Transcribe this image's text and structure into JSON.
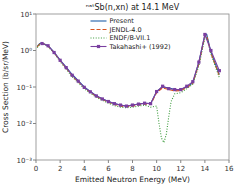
{
  "chart_data": {
    "type": "line",
    "title": "ⁿᵃᵗSb(n,xn) at 14.1 MeV",
    "x_label": "Emitted Neutron Energy (MeV)",
    "y_label": "Cross Section (b/sr/MeV)",
    "log": "y",
    "legend": "upper center",
    "grid": false,
    "xlim": [
      0,
      16
    ],
    "xticks": [
      0,
      2,
      4,
      6,
      8,
      10,
      12,
      14,
      16
    ],
    "ylim": [
      0.001,
      10
    ],
    "yticks": [
      {
        "value": 0.001,
        "label": "10⁻³"
      },
      {
        "value": 0.01,
        "label": "10⁻²"
      },
      {
        "value": 0.1,
        "label": "10⁻¹"
      },
      {
        "value": 1,
        "label": "10⁰"
      },
      {
        "value": 10,
        "label": "10¹"
      }
    ],
    "series": [
      {
        "name": "Present",
        "line_style": "solid",
        "x": [
          0.1,
          0.3,
          0.5,
          0.7,
          1.0,
          1.5,
          2.0,
          2.5,
          3.0,
          3.5,
          4.0,
          4.5,
          5.0,
          5.5,
          6.0,
          6.5,
          7.0,
          7.5,
          8.0,
          8.5,
          9.0,
          9.5,
          10.0,
          10.5,
          11.0,
          11.5,
          12.0,
          12.5,
          13.0,
          13.5,
          14.0,
          14.15,
          14.5,
          15.2
        ],
        "values": [
          1.3,
          1.55,
          1.6,
          1.5,
          1.35,
          0.9,
          0.55,
          0.35,
          0.22,
          0.15,
          0.1,
          0.075,
          0.058,
          0.048,
          0.04,
          0.035,
          0.032,
          0.03,
          0.032,
          0.034,
          0.036,
          0.035,
          0.075,
          0.1,
          0.095,
          0.085,
          0.085,
          0.1,
          0.13,
          0.48,
          2.7,
          2.8,
          0.9,
          0.22
        ]
      },
      {
        "name": "JENDL-4.0",
        "line_style": "dashed",
        "x": [
          0.1,
          0.3,
          0.5,
          0.7,
          1.0,
          1.5,
          2.0,
          2.5,
          3.0,
          3.5,
          4.0,
          4.5,
          5.0,
          5.5,
          6.0,
          6.5,
          7.0,
          7.5,
          8.0,
          8.5,
          9.0,
          9.5,
          10.0,
          10.5,
          11.0,
          11.5,
          12.0,
          12.5,
          13.0,
          13.5,
          14.0,
          14.15,
          14.5,
          15.2
        ],
        "values": [
          1.25,
          1.5,
          1.58,
          1.48,
          1.32,
          0.88,
          0.52,
          0.33,
          0.2,
          0.14,
          0.095,
          0.072,
          0.055,
          0.046,
          0.038,
          0.033,
          0.03,
          0.029,
          0.03,
          0.032,
          0.034,
          0.033,
          0.07,
          0.095,
          0.085,
          0.078,
          0.08,
          0.095,
          0.125,
          0.43,
          2.5,
          2.6,
          0.85,
          0.2
        ]
      },
      {
        "name": "ENDF/B-VII.1",
        "line_style": "dotted",
        "x": [
          0.1,
          0.3,
          0.5,
          0.7,
          1.0,
          1.5,
          2.0,
          2.5,
          3.0,
          3.5,
          4.0,
          4.5,
          5.0,
          5.5,
          6.0,
          6.5,
          7.0,
          7.5,
          8.0,
          8.5,
          9.0,
          9.5,
          10.0,
          10.2,
          10.4,
          10.6,
          10.8,
          11.0,
          11.2,
          11.5,
          12.0,
          12.5,
          13.0,
          13.5,
          14.0,
          14.15,
          14.5,
          15.2
        ],
        "values": [
          1.2,
          1.45,
          1.55,
          1.45,
          1.28,
          0.85,
          0.5,
          0.31,
          0.19,
          0.13,
          0.09,
          0.068,
          0.052,
          0.043,
          0.036,
          0.031,
          0.028,
          0.027,
          0.028,
          0.03,
          0.032,
          0.028,
          0.03,
          0.01,
          0.004,
          0.003,
          0.005,
          0.015,
          0.04,
          0.065,
          0.07,
          0.09,
          0.12,
          0.38,
          2.2,
          2.3,
          0.8,
          0.18
        ]
      },
      {
        "name": "Takahashi+ (1992)",
        "line_style": "solid",
        "marker": "square",
        "x": [
          0.5,
          1.0,
          1.5,
          2.0,
          2.5,
          3.0,
          3.5,
          4.0,
          4.5,
          5.0,
          5.5,
          6.0,
          6.5,
          7.0,
          7.5,
          8.0,
          8.5,
          9.0,
          9.5,
          10.0,
          10.5,
          11.0,
          11.5,
          12.0,
          12.5,
          13.0,
          13.5,
          14.0,
          14.5,
          15.2
        ],
        "values": [
          1.55,
          1.35,
          0.88,
          0.54,
          0.34,
          0.21,
          0.145,
          0.098,
          0.074,
          0.057,
          0.047,
          0.04,
          0.035,
          0.032,
          0.03,
          0.032,
          0.034,
          0.036,
          0.035,
          0.075,
          0.105,
          0.09,
          0.085,
          0.085,
          0.105,
          0.14,
          0.48,
          2.75,
          1.0,
          0.28
        ]
      }
    ]
  }
}
